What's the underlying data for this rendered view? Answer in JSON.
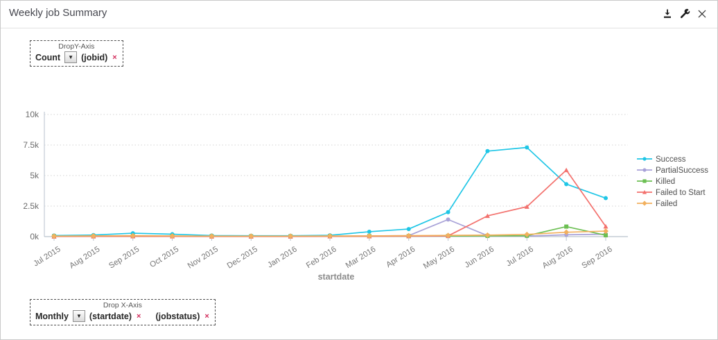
{
  "panel": {
    "title": "Weekly job Summary"
  },
  "y_dropzone": {
    "label": "DropY-Axis",
    "aggregation": "Count",
    "field": "(jobid)",
    "remove_glyph": "×"
  },
  "x_dropzone": {
    "label": "Drop X-Axis",
    "interval": "Monthly",
    "fields": [
      {
        "name": "(startdate)",
        "remove_glyph": "×"
      },
      {
        "name": "(jobstatus)",
        "remove_glyph": "×"
      }
    ]
  },
  "chart_data": {
    "type": "line",
    "title": "",
    "xlabel": "startdate",
    "ylabel": "",
    "ylim": [
      0,
      10000
    ],
    "y_ticks": [
      {
        "value": 0,
        "label": "0k"
      },
      {
        "value": 2500,
        "label": "2.5k"
      },
      {
        "value": 5000,
        "label": "5k"
      },
      {
        "value": 7500,
        "label": "7.5k"
      },
      {
        "value": 10000,
        "label": "10k"
      }
    ],
    "grid": "dotted-horizontal",
    "legend_position": "right",
    "categories": [
      "Jul 2015",
      "Aug 2015",
      "Sep 2015",
      "Oct 2015",
      "Nov 2015",
      "Dec 2015",
      "Jan 2016",
      "Feb 2016",
      "Mar 2016",
      "Apr 2016",
      "May 2016",
      "Jun 2016",
      "Jul 2016",
      "Aug 2016",
      "Sep 2016"
    ],
    "series": [
      {
        "name": "Success",
        "color": "#1fc6e6",
        "marker": "circle",
        "values": [
          90,
          130,
          280,
          200,
          90,
          70,
          70,
          110,
          400,
          620,
          2000,
          7000,
          7300,
          4300,
          3150
        ]
      },
      {
        "name": "PartialSuccess",
        "color": "#a8a2d8",
        "marker": "circle",
        "values": [
          30,
          40,
          50,
          40,
          30,
          30,
          30,
          40,
          60,
          80,
          1400,
          80,
          40,
          150,
          200
        ]
      },
      {
        "name": "Killed",
        "color": "#6cbf53",
        "marker": "square",
        "values": [
          20,
          25,
          35,
          30,
          20,
          20,
          20,
          30,
          40,
          40,
          50,
          60,
          70,
          820,
          110
        ]
      },
      {
        "name": "Failed to Start",
        "color": "#f3716d",
        "marker": "triangle",
        "values": [
          10,
          20,
          30,
          20,
          10,
          10,
          10,
          20,
          30,
          40,
          60,
          1700,
          2450,
          5450,
          830
        ]
      },
      {
        "name": "Failed",
        "color": "#f2b05e",
        "marker": "diamond",
        "values": [
          40,
          60,
          80,
          60,
          40,
          40,
          40,
          50,
          60,
          80,
          100,
          120,
          180,
          360,
          450
        ]
      }
    ]
  }
}
